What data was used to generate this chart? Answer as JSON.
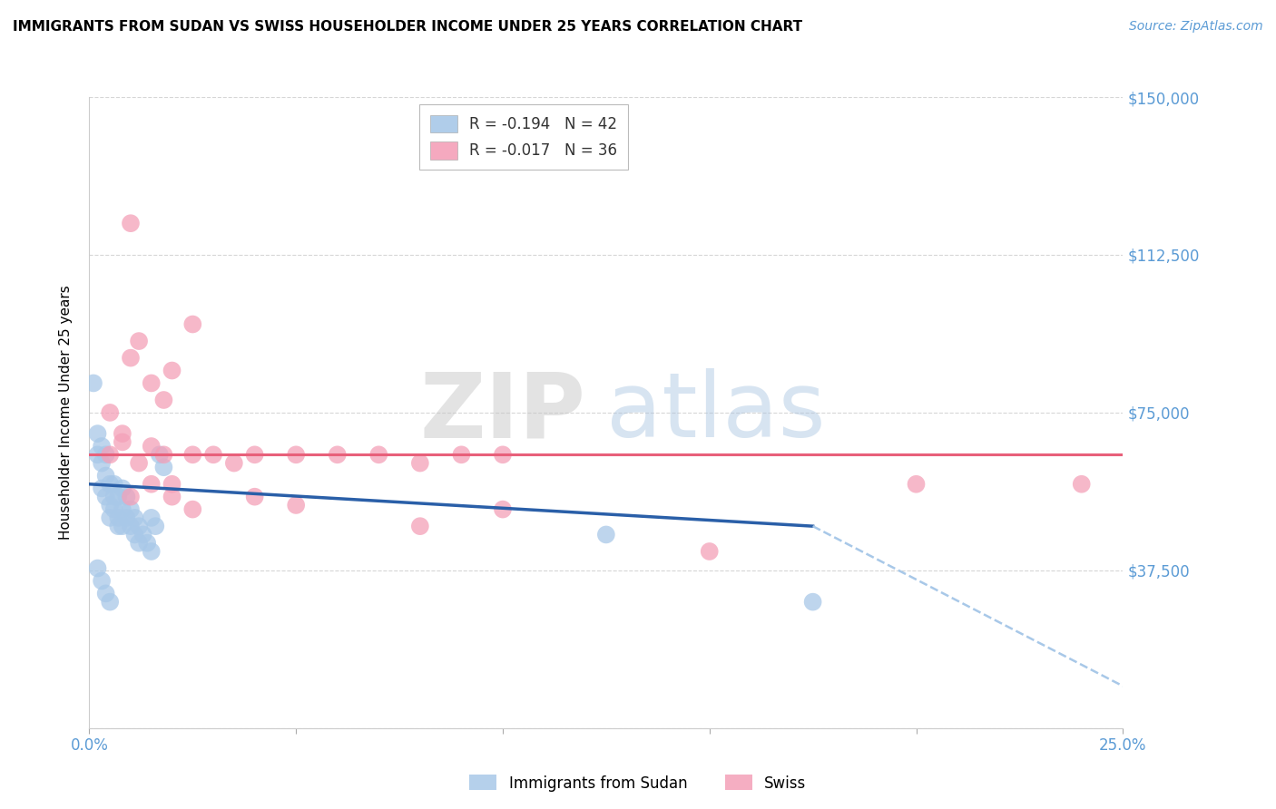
{
  "title": "IMMIGRANTS FROM SUDAN VS SWISS HOUSEHOLDER INCOME UNDER 25 YEARS CORRELATION CHART",
  "source": "Source: ZipAtlas.com",
  "xlabel_color": "#5b9bd5",
  "ylabel": "Householder Income Under 25 years",
  "xlim": [
    0.0,
    0.25
  ],
  "ylim": [
    0,
    150000
  ],
  "yticks": [
    0,
    37500,
    75000,
    112500,
    150000
  ],
  "xticks": [
    0.0,
    0.05,
    0.1,
    0.15,
    0.2,
    0.25
  ],
  "xtick_labels": [
    "0.0%",
    "",
    "",
    "",
    "",
    "25.0%"
  ],
  "ytick_labels": [
    "",
    "$37,500",
    "$75,000",
    "$112,500",
    "$150,000"
  ],
  "blue_color": "#a8c8e8",
  "pink_color": "#f4a0b8",
  "blue_line_color": "#2a5fa8",
  "pink_line_color": "#e8607a",
  "legend_R_blue": "-0.194",
  "legend_N_blue": "42",
  "legend_R_pink": "-0.017",
  "legend_N_pink": "36",
  "legend_label_blue": "Immigrants from Sudan",
  "legend_label_pink": "Swiss",
  "blue_dots": [
    [
      0.001,
      82000
    ],
    [
      0.002,
      70000
    ],
    [
      0.002,
      65000
    ],
    [
      0.003,
      67000
    ],
    [
      0.003,
      63000
    ],
    [
      0.003,
      57000
    ],
    [
      0.004,
      65000
    ],
    [
      0.004,
      60000
    ],
    [
      0.004,
      55000
    ],
    [
      0.005,
      58000
    ],
    [
      0.005,
      53000
    ],
    [
      0.005,
      50000
    ],
    [
      0.006,
      58000
    ],
    [
      0.006,
      55000
    ],
    [
      0.006,
      52000
    ],
    [
      0.007,
      55000
    ],
    [
      0.007,
      50000
    ],
    [
      0.007,
      48000
    ],
    [
      0.008,
      57000
    ],
    [
      0.008,
      52000
    ],
    [
      0.008,
      48000
    ],
    [
      0.009,
      55000
    ],
    [
      0.009,
      50000
    ],
    [
      0.01,
      52000
    ],
    [
      0.01,
      48000
    ],
    [
      0.011,
      50000
    ],
    [
      0.011,
      46000
    ],
    [
      0.012,
      48000
    ],
    [
      0.012,
      44000
    ],
    [
      0.013,
      46000
    ],
    [
      0.014,
      44000
    ],
    [
      0.015,
      50000
    ],
    [
      0.015,
      42000
    ],
    [
      0.016,
      48000
    ],
    [
      0.017,
      65000
    ],
    [
      0.018,
      62000
    ],
    [
      0.002,
      38000
    ],
    [
      0.003,
      35000
    ],
    [
      0.004,
      32000
    ],
    [
      0.005,
      30000
    ],
    [
      0.125,
      46000
    ],
    [
      0.175,
      30000
    ]
  ],
  "pink_dots": [
    [
      0.005,
      75000
    ],
    [
      0.008,
      70000
    ],
    [
      0.01,
      88000
    ],
    [
      0.012,
      92000
    ],
    [
      0.015,
      82000
    ],
    [
      0.018,
      78000
    ],
    [
      0.02,
      85000
    ],
    [
      0.025,
      96000
    ],
    [
      0.01,
      120000
    ],
    [
      0.005,
      65000
    ],
    [
      0.008,
      68000
    ],
    [
      0.012,
      63000
    ],
    [
      0.015,
      67000
    ],
    [
      0.018,
      65000
    ],
    [
      0.02,
      58000
    ],
    [
      0.025,
      65000
    ],
    [
      0.03,
      65000
    ],
    [
      0.035,
      63000
    ],
    [
      0.04,
      65000
    ],
    [
      0.05,
      65000
    ],
    [
      0.06,
      65000
    ],
    [
      0.07,
      65000
    ],
    [
      0.08,
      63000
    ],
    [
      0.09,
      65000
    ],
    [
      0.01,
      55000
    ],
    [
      0.015,
      58000
    ],
    [
      0.02,
      55000
    ],
    [
      0.025,
      52000
    ],
    [
      0.04,
      55000
    ],
    [
      0.05,
      53000
    ],
    [
      0.08,
      48000
    ],
    [
      0.1,
      52000
    ],
    [
      0.15,
      42000
    ],
    [
      0.2,
      58000
    ],
    [
      0.24,
      58000
    ],
    [
      0.1,
      65000
    ]
  ],
  "blue_trend_x0": 0.0,
  "blue_trend_y0": 58000,
  "blue_trend_x1": 0.175,
  "blue_trend_y1": 48000,
  "blue_trend_x2": 0.25,
  "blue_trend_y2": 10000,
  "pink_trend_y": 65000,
  "grid_color": "#cccccc",
  "bg_color": "#ffffff"
}
